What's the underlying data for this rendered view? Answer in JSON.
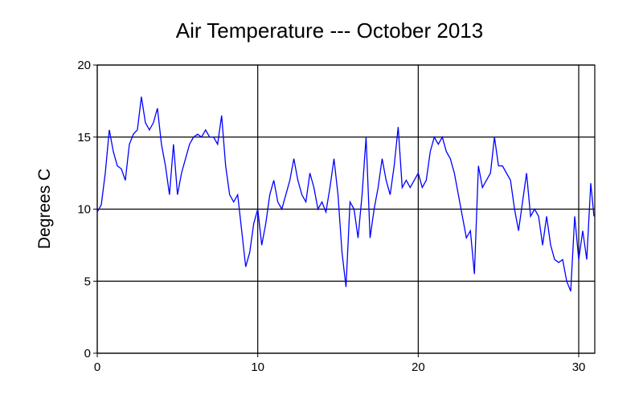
{
  "chart_data": {
    "type": "line",
    "title": "Air Temperature --- October 2013",
    "y_label": "Degrees C",
    "x": [
      0,
      0.25,
      0.5,
      0.75,
      1,
      1.25,
      1.5,
      1.75,
      2,
      2.25,
      2.5,
      2.75,
      3,
      3.25,
      3.5,
      3.75,
      4,
      4.25,
      4.5,
      4.75,
      5,
      5.25,
      5.5,
      5.75,
      6,
      6.25,
      6.5,
      6.75,
      7,
      7.25,
      7.5,
      7.75,
      8,
      8.25,
      8.5,
      8.75,
      9,
      9.25,
      9.5,
      9.75,
      10,
      10.25,
      10.5,
      10.75,
      11,
      11.25,
      11.5,
      11.75,
      12,
      12.25,
      12.5,
      12.75,
      13,
      13.25,
      13.5,
      13.75,
      14,
      14.25,
      14.5,
      14.75,
      15,
      15.25,
      15.5,
      15.75,
      16,
      16.25,
      16.5,
      16.75,
      17,
      17.25,
      17.5,
      17.75,
      18,
      18.25,
      18.5,
      18.75,
      19,
      19.25,
      19.5,
      19.75,
      20,
      20.25,
      20.5,
      20.75,
      21,
      21.25,
      21.5,
      21.75,
      22,
      22.25,
      22.5,
      22.75,
      23,
      23.25,
      23.5,
      23.75,
      24,
      24.25,
      24.5,
      24.75,
      25,
      25.25,
      25.5,
      25.75,
      26,
      26.25,
      26.5,
      26.75,
      27,
      27.25,
      27.5,
      27.75,
      28,
      28.25,
      28.5,
      28.75,
      29,
      29.25,
      29.5,
      29.75,
      30,
      30.25,
      30.5,
      30.75,
      30.95
    ],
    "series": [
      {
        "name": "Air Temperature",
        "color": "#0000ff",
        "values": [
          9.8,
          10.3,
          12.5,
          15.5,
          14,
          13,
          12.8,
          12,
          14.5,
          15.2,
          15.5,
          17.8,
          16,
          15.5,
          16,
          17,
          14.5,
          13,
          11,
          14.5,
          11,
          12.5,
          13.5,
          14.5,
          15,
          15.2,
          15,
          15.5,
          15,
          15,
          14.5,
          16.5,
          13,
          11,
          10.5,
          11,
          8.5,
          6,
          7,
          9,
          10,
          7.5,
          9,
          11,
          12,
          10.5,
          10,
          11,
          12,
          13.5,
          12,
          11,
          10.5,
          12.5,
          11.5,
          10,
          10.5,
          9.8,
          11.5,
          13.5,
          11,
          7,
          4.6,
          10.5,
          10,
          8,
          11,
          15,
          8,
          10,
          11.5,
          13.5,
          12,
          11,
          13,
          15.7,
          11.5,
          12,
          11.5,
          12,
          12.5,
          11.5,
          12,
          14,
          15,
          14.5,
          15,
          14,
          13.5,
          12.5,
          11,
          9.5,
          8,
          8.5,
          5.5,
          13,
          11.5,
          12,
          12.5,
          15,
          13,
          13,
          12.5,
          12,
          10,
          8.5,
          10.5,
          12.5,
          9.5,
          10,
          9.5,
          7.5,
          9.5,
          7.5,
          6.5,
          6.3,
          6.5,
          5,
          4.3,
          9.5,
          6.5,
          8.5,
          6.5,
          11.8,
          9.5
        ]
      }
    ],
    "xlim": [
      0,
      31
    ],
    "ylim": [
      0,
      20
    ],
    "xticks": [
      0,
      10,
      20,
      30
    ],
    "yticks": [
      0,
      5,
      10,
      15,
      20
    ],
    "grid": true
  }
}
